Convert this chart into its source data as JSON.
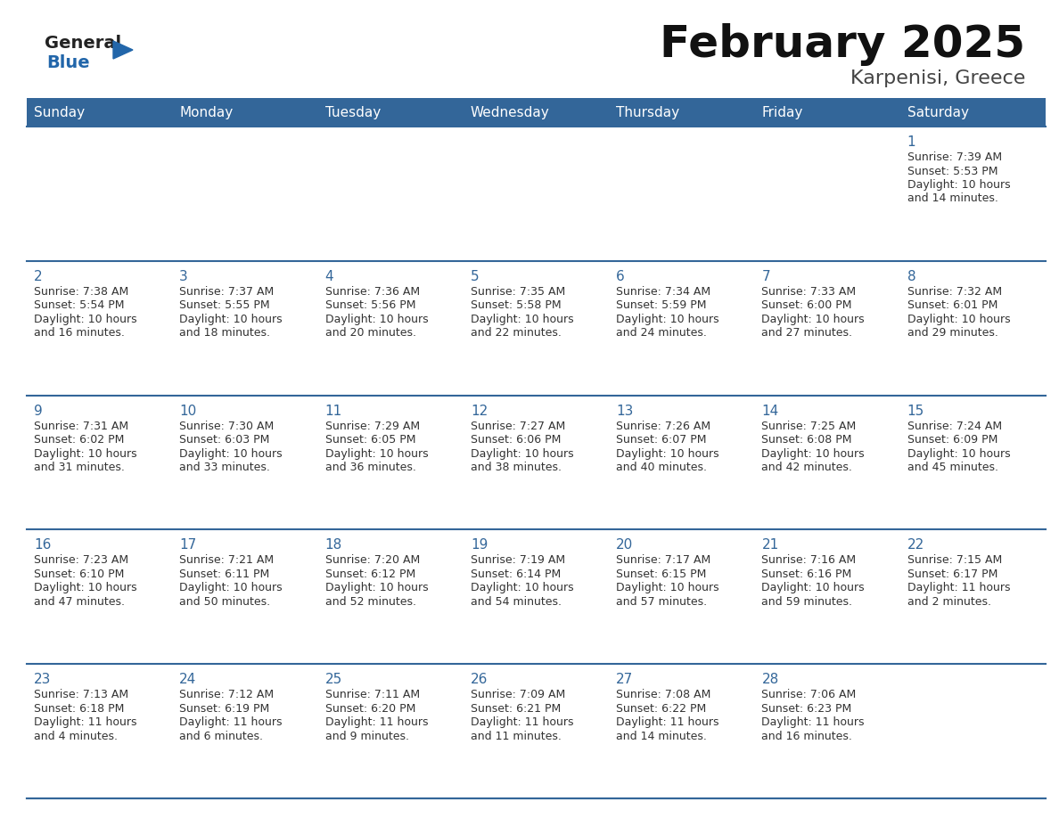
{
  "title": "February 2025",
  "subtitle": "Karpenisi, Greece",
  "header_bg_color": "#336699",
  "header_text_color": "#ffffff",
  "cell_bg_color": "#ffffff",
  "row_border_color": "#336699",
  "days_of_week": [
    "Sunday",
    "Monday",
    "Tuesday",
    "Wednesday",
    "Thursday",
    "Friday",
    "Saturday"
  ],
  "title_color": "#111111",
  "subtitle_color": "#444444",
  "day_number_color": "#336699",
  "cell_text_color": "#333333",
  "logo_general_color": "#222222",
  "logo_blue_color": "#2266aa",
  "logo_triangle_color": "#2266aa",
  "calendar": [
    [
      null,
      null,
      null,
      null,
      null,
      null,
      {
        "day": 1,
        "sunrise": "7:39 AM",
        "sunset": "5:53 PM",
        "daylight": "10 hours\nand 14 minutes."
      }
    ],
    [
      {
        "day": 2,
        "sunrise": "7:38 AM",
        "sunset": "5:54 PM",
        "daylight": "10 hours\nand 16 minutes."
      },
      {
        "day": 3,
        "sunrise": "7:37 AM",
        "sunset": "5:55 PM",
        "daylight": "10 hours\nand 18 minutes."
      },
      {
        "day": 4,
        "sunrise": "7:36 AM",
        "sunset": "5:56 PM",
        "daylight": "10 hours\nand 20 minutes."
      },
      {
        "day": 5,
        "sunrise": "7:35 AM",
        "sunset": "5:58 PM",
        "daylight": "10 hours\nand 22 minutes."
      },
      {
        "day": 6,
        "sunrise": "7:34 AM",
        "sunset": "5:59 PM",
        "daylight": "10 hours\nand 24 minutes."
      },
      {
        "day": 7,
        "sunrise": "7:33 AM",
        "sunset": "6:00 PM",
        "daylight": "10 hours\nand 27 minutes."
      },
      {
        "day": 8,
        "sunrise": "7:32 AM",
        "sunset": "6:01 PM",
        "daylight": "10 hours\nand 29 minutes."
      }
    ],
    [
      {
        "day": 9,
        "sunrise": "7:31 AM",
        "sunset": "6:02 PM",
        "daylight": "10 hours\nand 31 minutes."
      },
      {
        "day": 10,
        "sunrise": "7:30 AM",
        "sunset": "6:03 PM",
        "daylight": "10 hours\nand 33 minutes."
      },
      {
        "day": 11,
        "sunrise": "7:29 AM",
        "sunset": "6:05 PM",
        "daylight": "10 hours\nand 36 minutes."
      },
      {
        "day": 12,
        "sunrise": "7:27 AM",
        "sunset": "6:06 PM",
        "daylight": "10 hours\nand 38 minutes."
      },
      {
        "day": 13,
        "sunrise": "7:26 AM",
        "sunset": "6:07 PM",
        "daylight": "10 hours\nand 40 minutes."
      },
      {
        "day": 14,
        "sunrise": "7:25 AM",
        "sunset": "6:08 PM",
        "daylight": "10 hours\nand 42 minutes."
      },
      {
        "day": 15,
        "sunrise": "7:24 AM",
        "sunset": "6:09 PM",
        "daylight": "10 hours\nand 45 minutes."
      }
    ],
    [
      {
        "day": 16,
        "sunrise": "7:23 AM",
        "sunset": "6:10 PM",
        "daylight": "10 hours\nand 47 minutes."
      },
      {
        "day": 17,
        "sunrise": "7:21 AM",
        "sunset": "6:11 PM",
        "daylight": "10 hours\nand 50 minutes."
      },
      {
        "day": 18,
        "sunrise": "7:20 AM",
        "sunset": "6:12 PM",
        "daylight": "10 hours\nand 52 minutes."
      },
      {
        "day": 19,
        "sunrise": "7:19 AM",
        "sunset": "6:14 PM",
        "daylight": "10 hours\nand 54 minutes."
      },
      {
        "day": 20,
        "sunrise": "7:17 AM",
        "sunset": "6:15 PM",
        "daylight": "10 hours\nand 57 minutes."
      },
      {
        "day": 21,
        "sunrise": "7:16 AM",
        "sunset": "6:16 PM",
        "daylight": "10 hours\nand 59 minutes."
      },
      {
        "day": 22,
        "sunrise": "7:15 AM",
        "sunset": "6:17 PM",
        "daylight": "11 hours\nand 2 minutes."
      }
    ],
    [
      {
        "day": 23,
        "sunrise": "7:13 AM",
        "sunset": "6:18 PM",
        "daylight": "11 hours\nand 4 minutes."
      },
      {
        "day": 24,
        "sunrise": "7:12 AM",
        "sunset": "6:19 PM",
        "daylight": "11 hours\nand 6 minutes."
      },
      {
        "day": 25,
        "sunrise": "7:11 AM",
        "sunset": "6:20 PM",
        "daylight": "11 hours\nand 9 minutes."
      },
      {
        "day": 26,
        "sunrise": "7:09 AM",
        "sunset": "6:21 PM",
        "daylight": "11 hours\nand 11 minutes."
      },
      {
        "day": 27,
        "sunrise": "7:08 AM",
        "sunset": "6:22 PM",
        "daylight": "11 hours\nand 14 minutes."
      },
      {
        "day": 28,
        "sunrise": "7:06 AM",
        "sunset": "6:23 PM",
        "daylight": "11 hours\nand 16 minutes."
      },
      null
    ]
  ]
}
